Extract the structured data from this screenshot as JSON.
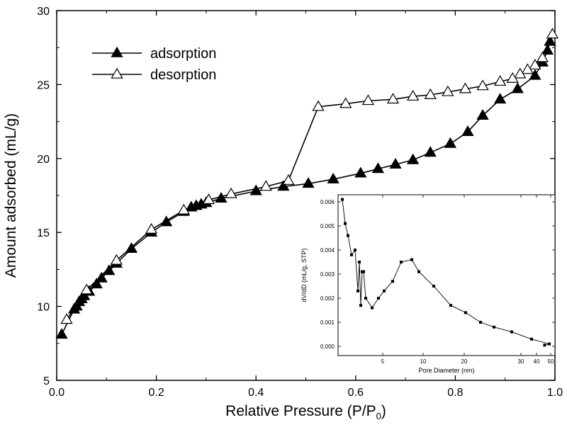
{
  "chart_data": [
    {
      "type": "line",
      "title": "",
      "xlabel": "Relative Pressure (P/P",
      "xlabel_sub": "0",
      "xlabel_end": ")",
      "ylabel": "Amount adsorbed (mL/g)",
      "xlim": [
        0.0,
        1.0
      ],
      "ylim": [
        5,
        30
      ],
      "xticks": [
        0.0,
        0.2,
        0.4,
        0.6,
        0.8,
        1.0
      ],
      "xtick_labels": [
        "0.0",
        "0.2",
        "0.4",
        "0.6",
        "0.8",
        "1.0"
      ],
      "yticks": [
        5,
        10,
        15,
        20,
        25,
        30
      ],
      "ytick_labels": [
        "5",
        "10",
        "15",
        "20",
        "25",
        "30"
      ],
      "grid": false,
      "legend_position": "top-left",
      "series": [
        {
          "name": "adsorption",
          "marker": "filled-triangle",
          "x": [
            0.01,
            0.035,
            0.04,
            0.045,
            0.05,
            0.055,
            0.065,
            0.08,
            0.09,
            0.105,
            0.12,
            0.15,
            0.19,
            0.22,
            0.255,
            0.27,
            0.28,
            0.29,
            0.3,
            0.33,
            0.4,
            0.455,
            0.505,
            0.555,
            0.61,
            0.645,
            0.68,
            0.715,
            0.75,
            0.79,
            0.825,
            0.855,
            0.89,
            0.925,
            0.96,
            0.975,
            0.985,
            0.99
          ],
          "y": [
            8.1,
            9.8,
            10.0,
            10.3,
            10.5,
            10.7,
            11.0,
            11.5,
            11.9,
            12.4,
            12.9,
            13.9,
            15.0,
            15.7,
            16.4,
            16.7,
            16.8,
            16.9,
            17.0,
            17.3,
            17.8,
            18.1,
            18.3,
            18.6,
            19.0,
            19.3,
            19.6,
            19.9,
            20.4,
            21.0,
            21.8,
            22.9,
            24.0,
            24.7,
            25.6,
            26.5,
            27.3,
            27.9
          ]
        },
        {
          "name": "desorption",
          "marker": "open-triangle",
          "x": [
            0.995,
            0.975,
            0.96,
            0.945,
            0.93,
            0.915,
            0.89,
            0.855,
            0.82,
            0.785,
            0.75,
            0.715,
            0.675,
            0.625,
            0.58,
            0.525,
            0.465,
            0.42,
            0.35,
            0.305,
            0.255,
            0.19,
            0.12,
            0.06,
            0.02
          ],
          "y": [
            28.4,
            26.8,
            26.3,
            26.0,
            25.7,
            25.4,
            25.2,
            24.9,
            24.7,
            24.5,
            24.3,
            24.2,
            24.0,
            23.9,
            23.7,
            23.5,
            18.5,
            18.1,
            17.6,
            17.2,
            16.5,
            15.2,
            13.1,
            11.1,
            9.1
          ]
        }
      ]
    },
    {
      "type": "line",
      "title": "",
      "xlabel": "Pore Diameter (nm)",
      "ylabel": "dV/dD (mL/g, STP)",
      "x_scale": "log",
      "xlim": [
        1.8,
        50
      ],
      "ylim": [
        -0.0002,
        0.0063
      ],
      "xticks": [
        5,
        10,
        20,
        30,
        40,
        50
      ],
      "xtick_labels": [
        "5",
        "10",
        "20",
        "30",
        "40",
        "50"
      ],
      "yticks": [
        0.0,
        0.001,
        0.002,
        0.003,
        0.004,
        0.005,
        0.006
      ],
      "ytick_labels": [
        "0.000",
        "0.001",
        "0.002",
        "0.003",
        "0.004",
        "0.005",
        "0.006"
      ],
      "grid": false,
      "position": "inset bottom-right",
      "series": [
        {
          "name": "pore size distribution",
          "marker": "filled-square",
          "x": [
            1.9,
            2.0,
            2.1,
            2.3,
            2.4,
            2.5,
            2.55,
            2.6,
            2.65,
            2.7,
            2.8,
            3.0,
            3.3,
            3.8,
            4.3,
            4.9,
            5.6,
            6.2,
            7.5,
            9.4,
            11.6,
            14.0,
            17.0,
            21.0,
            27.0,
            35.0,
            46.0
          ],
          "y": [
            0.0061,
            0.0051,
            0.0046,
            0.0038,
            0.004,
            0.0023,
            0.0035,
            0.0017,
            0.0031,
            0.0031,
            0.002,
            0.0016,
            0.002,
            0.0023,
            0.0027,
            0.0035,
            0.0036,
            0.0031,
            0.0025,
            0.0017,
            0.0014,
            0.001,
            0.0008,
            0.0006,
            0.0003,
            0.0001,
            5e-05
          ]
        }
      ]
    }
  ]
}
